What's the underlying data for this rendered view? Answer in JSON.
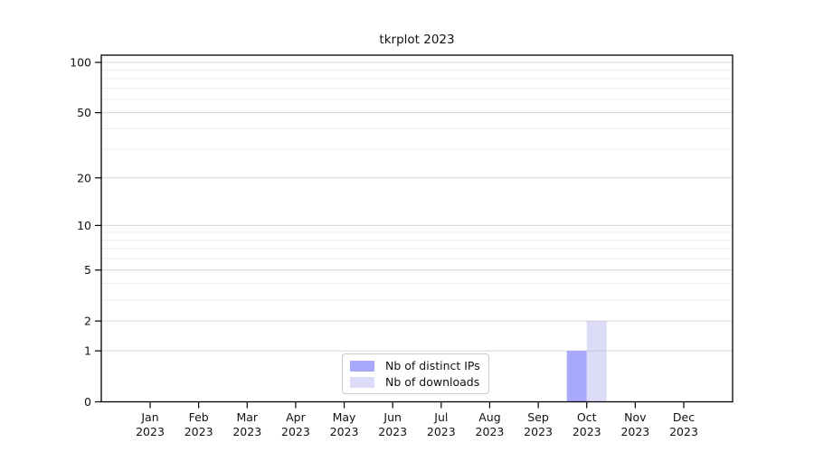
{
  "chart_data": {
    "type": "bar",
    "title": "tkrplot 2023",
    "categories": [
      "Jan",
      "Feb",
      "Mar",
      "Apr",
      "May",
      "Jun",
      "Jul",
      "Aug",
      "Sep",
      "Oct",
      "Nov",
      "Dec"
    ],
    "category_year": "2023",
    "series": [
      {
        "name": "Nb of distinct IPs",
        "color": "rgba(140,140,250,0.75)",
        "values": [
          0,
          0,
          0,
          0,
          0,
          0,
          0,
          0,
          0,
          1,
          0,
          0
        ]
      },
      {
        "name": "Nb of downloads",
        "color": "rgba(185,185,242,0.5)",
        "values": [
          0,
          0,
          0,
          0,
          0,
          0,
          0,
          0,
          0,
          2,
          0,
          0
        ]
      }
    ],
    "xlabel": "",
    "ylabel": "",
    "yscale": "log1p",
    "ylim": [
      0,
      100
    ],
    "y_ticks": [
      0,
      1,
      2,
      5,
      10,
      20,
      50,
      100
    ],
    "y_minor_gridlines": [
      3,
      4,
      6,
      7,
      8,
      9,
      30,
      40,
      60,
      70,
      80,
      90
    ],
    "grid": "horizontal",
    "legend_position": "inside-bottom-center",
    "colors": {
      "axis": "#000000",
      "major_grid": "#d6d6d6",
      "minor_grid": "#ececec",
      "tick_label": "#111111",
      "legend_border": "#c9c9c9"
    }
  }
}
